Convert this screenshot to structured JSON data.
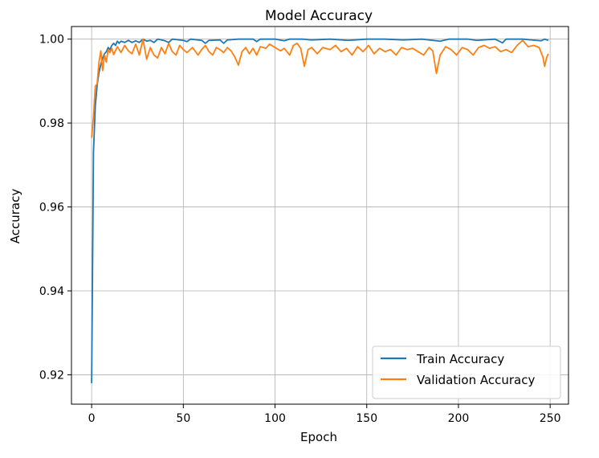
{
  "chart_data": {
    "type": "line",
    "title": "Model Accuracy",
    "xlabel": "Epoch",
    "ylabel": "Accuracy",
    "xlim": [
      -11,
      260
    ],
    "ylim": [
      0.913,
      1.003
    ],
    "xticks": [
      0,
      50,
      100,
      150,
      200,
      250
    ],
    "yticks": [
      0.92,
      0.94,
      0.96,
      0.98,
      1.0
    ],
    "ytick_labels": [
      "0.92",
      "0.94",
      "0.96",
      "0.98",
      "1.00"
    ],
    "grid": true,
    "legend_position": "lower-right",
    "series": [
      {
        "name": "Train Accuracy",
        "color": "#1f77b4",
        "points": [
          [
            0,
            0.918
          ],
          [
            1,
            0.973
          ],
          [
            2,
            0.984
          ],
          [
            3,
            0.989
          ],
          [
            4,
            0.992
          ],
          [
            5,
            0.994
          ],
          [
            6,
            0.9955
          ],
          [
            7,
            0.9965
          ],
          [
            8,
            0.997
          ],
          [
            9,
            0.998
          ],
          [
            10,
            0.9975
          ],
          [
            11,
            0.9985
          ],
          [
            12,
            0.999
          ],
          [
            13,
            0.9985
          ],
          [
            14,
            0.9995
          ],
          [
            15,
            0.999
          ],
          [
            16,
            0.9995
          ],
          [
            18,
            0.9992
          ],
          [
            20,
            0.9997
          ],
          [
            22,
            0.9992
          ],
          [
            24,
            0.9996
          ],
          [
            26,
            0.9992
          ],
          [
            28,
            1.0
          ],
          [
            30,
            0.9995
          ],
          [
            32,
            0.9997
          ],
          [
            34,
            0.9992
          ],
          [
            36,
            1.0
          ],
          [
            40,
            0.9996
          ],
          [
            42,
            0.9992
          ],
          [
            44,
            1.0
          ],
          [
            50,
            0.9997
          ],
          [
            52,
            0.9994
          ],
          [
            54,
            1.0
          ],
          [
            60,
            0.9997
          ],
          [
            62,
            0.999
          ],
          [
            64,
            0.9997
          ],
          [
            70,
            0.9998
          ],
          [
            72,
            0.999
          ],
          [
            74,
            0.9998
          ],
          [
            80,
            1.0
          ],
          [
            88,
            1.0
          ],
          [
            90,
            0.9994
          ],
          [
            92,
            1.0
          ],
          [
            100,
            1.0
          ],
          [
            105,
            0.9996
          ],
          [
            108,
            1.0
          ],
          [
            115,
            1.0
          ],
          [
            120,
            0.9998
          ],
          [
            130,
            1.0
          ],
          [
            140,
            0.9997
          ],
          [
            150,
            1.0
          ],
          [
            160,
            1.0
          ],
          [
            170,
            0.9998
          ],
          [
            180,
            1.0
          ],
          [
            190,
            0.9995
          ],
          [
            195,
            1.0
          ],
          [
            205,
            1.0
          ],
          [
            210,
            0.9997
          ],
          [
            220,
            1.0
          ],
          [
            224,
            0.9991
          ],
          [
            226,
            1.0
          ],
          [
            235,
            1.0
          ],
          [
            240,
            0.9998
          ],
          [
            245,
            0.9996
          ],
          [
            247,
            1.0
          ],
          [
            249,
            0.9997
          ]
        ]
      },
      {
        "name": "Validation Accuracy",
        "color": "#ff7f0e",
        "points": [
          [
            0,
            0.9765
          ],
          [
            1,
            0.9815
          ],
          [
            2,
            0.9888
          ],
          [
            3,
            0.9893
          ],
          [
            4,
            0.9945
          ],
          [
            5,
            0.9972
          ],
          [
            6,
            0.9925
          ],
          [
            7,
            0.9962
          ],
          [
            8,
            0.9945
          ],
          [
            9,
            0.9975
          ],
          [
            10,
            0.9968
          ],
          [
            11,
            0.9978
          ],
          [
            12,
            0.9963
          ],
          [
            14,
            0.9982
          ],
          [
            16,
            0.9968
          ],
          [
            18,
            0.9985
          ],
          [
            20,
            0.9972
          ],
          [
            22,
            0.9965
          ],
          [
            24,
            0.9988
          ],
          [
            26,
            0.9962
          ],
          [
            28,
            1.0
          ],
          [
            30,
            0.9952
          ],
          [
            32,
            0.998
          ],
          [
            34,
            0.9962
          ],
          [
            36,
            0.9955
          ],
          [
            38,
            0.998
          ],
          [
            40,
            0.9965
          ],
          [
            42,
            0.999
          ],
          [
            44,
            0.997
          ],
          [
            46,
            0.9962
          ],
          [
            48,
            0.9985
          ],
          [
            50,
            0.9975
          ],
          [
            52,
            0.9968
          ],
          [
            55,
            0.998
          ],
          [
            58,
            0.9962
          ],
          [
            60,
            0.9975
          ],
          [
            62,
            0.9985
          ],
          [
            64,
            0.997
          ],
          [
            66,
            0.9962
          ],
          [
            68,
            0.998
          ],
          [
            70,
            0.9975
          ],
          [
            72,
            0.9968
          ],
          [
            74,
            0.998
          ],
          [
            76,
            0.9972
          ],
          [
            78,
            0.9958
          ],
          [
            80,
            0.9938
          ],
          [
            82,
            0.997
          ],
          [
            84,
            0.998
          ],
          [
            86,
            0.9965
          ],
          [
            88,
            0.9978
          ],
          [
            90,
            0.9962
          ],
          [
            92,
            0.9982
          ],
          [
            95,
            0.9978
          ],
          [
            97,
            0.9988
          ],
          [
            100,
            0.998
          ],
          [
            103,
            0.9972
          ],
          [
            105,
            0.9978
          ],
          [
            108,
            0.9962
          ],
          [
            110,
            0.9985
          ],
          [
            112,
            0.999
          ],
          [
            114,
            0.9978
          ],
          [
            116,
            0.9935
          ],
          [
            118,
            0.9975
          ],
          [
            120,
            0.998
          ],
          [
            123,
            0.9965
          ],
          [
            126,
            0.998
          ],
          [
            130,
            0.9975
          ],
          [
            133,
            0.9985
          ],
          [
            136,
            0.997
          ],
          [
            139,
            0.9978
          ],
          [
            142,
            0.9962
          ],
          [
            145,
            0.9982
          ],
          [
            148,
            0.997
          ],
          [
            151,
            0.9985
          ],
          [
            154,
            0.9965
          ],
          [
            157,
            0.9978
          ],
          [
            160,
            0.997
          ],
          [
            163,
            0.9975
          ],
          [
            166,
            0.9962
          ],
          [
            169,
            0.998
          ],
          [
            172,
            0.9975
          ],
          [
            175,
            0.9978
          ],
          [
            178,
            0.997
          ],
          [
            181,
            0.9962
          ],
          [
            184,
            0.998
          ],
          [
            186,
            0.9972
          ],
          [
            188,
            0.9918
          ],
          [
            190,
            0.9962
          ],
          [
            193,
            0.9982
          ],
          [
            196,
            0.9975
          ],
          [
            199,
            0.9962
          ],
          [
            202,
            0.998
          ],
          [
            205,
            0.9975
          ],
          [
            208,
            0.9962
          ],
          [
            211,
            0.998
          ],
          [
            214,
            0.9985
          ],
          [
            217,
            0.9978
          ],
          [
            220,
            0.9982
          ],
          [
            223,
            0.997
          ],
          [
            226,
            0.9975
          ],
          [
            229,
            0.9968
          ],
          [
            232,
            0.9985
          ],
          [
            235,
            0.9997
          ],
          [
            238,
            0.9982
          ],
          [
            241,
            0.9985
          ],
          [
            244,
            0.998
          ],
          [
            246,
            0.9958
          ],
          [
            247,
            0.9935
          ],
          [
            248,
            0.9955
          ],
          [
            249,
            0.9965
          ]
        ]
      }
    ]
  }
}
